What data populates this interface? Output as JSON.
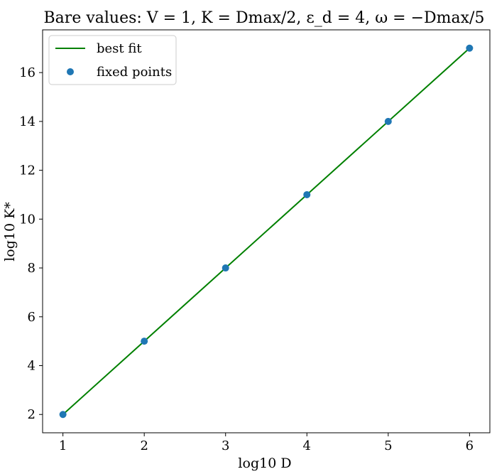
{
  "chart_data": {
    "type": "scatter",
    "title": "Bare values: V = 1, K = Dmax/2, ε_d = 4, ω = −Dmax/5",
    "xlabel": "log10 D",
    "ylabel": "log10 K*",
    "xlim": [
      0.75,
      6.25
    ],
    "ylim": [
      1.25,
      17.75
    ],
    "xticks": [
      1,
      2,
      3,
      4,
      5,
      6
    ],
    "yticks": [
      2,
      4,
      6,
      8,
      10,
      12,
      14,
      16
    ],
    "grid": false,
    "legend_position": "top-left",
    "series": [
      {
        "name": "best fit",
        "kind": "line",
        "color": "#008000",
        "x": [
          1,
          6
        ],
        "y": [
          2,
          17
        ]
      },
      {
        "name": "fixed points",
        "kind": "scatter",
        "color": "#1f77b4",
        "x": [
          1,
          2,
          3,
          4,
          5,
          6
        ],
        "y": [
          2,
          5,
          8,
          11,
          14,
          17
        ]
      }
    ]
  }
}
